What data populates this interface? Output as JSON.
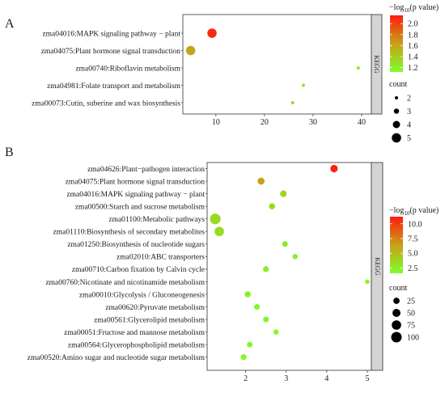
{
  "chart_data": [
    {
      "type": "scatter",
      "panel": "A",
      "strip": "KEGG",
      "x_ticks": [
        10,
        20,
        30,
        40
      ],
      "xlim": [
        3.2,
        42
      ],
      "categories": [
        "zma04016:MAPK signaling pathway − plant",
        "zma04075:Plant hormone signal transduction",
        "zma00740:Riboflavin metabolism",
        "zma04981:Folate transport and metabolism",
        "zma00073:Cutin, suberine and wax biosynthesis"
      ],
      "points": [
        {
          "x": 9.2,
          "count": 5,
          "p": 2.1
        },
        {
          "x": 4.8,
          "count": 5,
          "p": 1.6
        },
        {
          "x": 39.3,
          "count": 2,
          "p": 1.2
        },
        {
          "x": 28.0,
          "count": 2,
          "p": 1.25
        },
        {
          "x": 25.8,
          "count": 2,
          "p": 1.28
        }
      ],
      "color_legend": {
        "title_main": "−log",
        "title_sub": "10",
        "title_rest": "(p value)",
        "ticks": [
          2.0,
          1.8,
          1.6,
          1.4,
          1.2
        ],
        "tick_labels": [
          "2.0",
          "1.8",
          "1.6",
          "1.4",
          "1.2"
        ],
        "range": [
          1.12,
          2.15
        ]
      },
      "size_legend": {
        "title": "count",
        "values": [
          2,
          3,
          4,
          5
        ],
        "labels": [
          "2",
          "3",
          "4",
          "5"
        ]
      },
      "colors": {
        "low": "#7cff2a",
        "mid": "#c8a018",
        "high": "#ff1a10"
      }
    },
    {
      "type": "scatter",
      "panel": "B",
      "strip": "KEGG",
      "x_ticks": [
        2,
        3,
        4,
        5
      ],
      "xlim": [
        1.05,
        5.1
      ],
      "categories": [
        "zma04626:Plant−pathogen interaction",
        "zma04075:Plant hormone signal transduction",
        "zma04016:MAPK signaling pathway − plant",
        "zma00500:Starch and sucrose metabolism",
        "zma01100:Metabolic pathways",
        "zma01110:Biosynthesis of secondary metabolites",
        "zma01250:Biosynthesis of nucleotide sugars",
        "zma02010:ABC transporters",
        "zma00710:Carbon fixation by Calvin cycle",
        "zma00760:Nicotinate and nicotinamide metabolism",
        "zma00010:Glycolysis / Gluconeogenesis",
        "zma00620:Pyruvate metabolism",
        "zma00561:Glycerolipid metabolism",
        "zma00051:Fructose and mannose metabolism",
        "zma00564:Glycerophospholipid metabolism",
        "zma00520:Amino sugar and nucleotide sugar metabolism"
      ],
      "points": [
        {
          "x": 4.18,
          "count": 40,
          "p": 11.0
        },
        {
          "x": 2.38,
          "count": 35,
          "p": 6.2
        },
        {
          "x": 2.93,
          "count": 28,
          "p": 3.8
        },
        {
          "x": 2.65,
          "count": 22,
          "p": 3.4
        },
        {
          "x": 1.25,
          "count": 105,
          "p": 3.5
        },
        {
          "x": 1.35,
          "count": 75,
          "p": 3.3
        },
        {
          "x": 2.97,
          "count": 18,
          "p": 2.6
        },
        {
          "x": 3.22,
          "count": 14,
          "p": 2.4
        },
        {
          "x": 2.5,
          "count": 20,
          "p": 2.4
        },
        {
          "x": 5.0,
          "count": 8,
          "p": 2.1
        },
        {
          "x": 2.05,
          "count": 22,
          "p": 2.3
        },
        {
          "x": 2.28,
          "count": 18,
          "p": 2.2
        },
        {
          "x": 2.5,
          "count": 18,
          "p": 2.1
        },
        {
          "x": 2.75,
          "count": 14,
          "p": 2.1
        },
        {
          "x": 2.1,
          "count": 18,
          "p": 2.0
        },
        {
          "x": 1.95,
          "count": 20,
          "p": 1.9
        }
      ],
      "color_legend": {
        "title_main": "−log",
        "title_sub": "10",
        "title_rest": "(p value)",
        "ticks": [
          10.0,
          7.5,
          5.0,
          2.5
        ],
        "tick_labels": [
          "10.0",
          "7.5",
          "5.0",
          "2.5"
        ],
        "range": [
          1.6,
          11.2
        ]
      },
      "size_legend": {
        "title": "count",
        "values": [
          25,
          50,
          75,
          100
        ],
        "labels": [
          "25",
          "50",
          "75",
          "100"
        ]
      },
      "colors": {
        "low": "#7cff2a",
        "mid": "#c8a018",
        "high": "#ff1a10"
      }
    }
  ]
}
